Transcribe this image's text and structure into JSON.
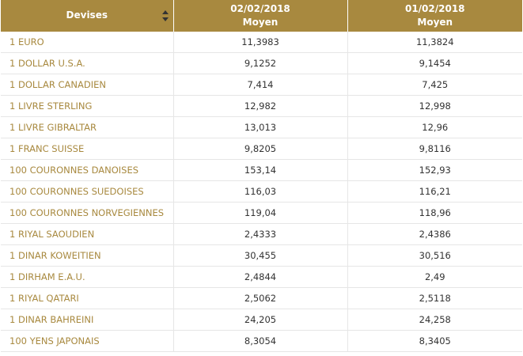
{
  "header": {
    "col_currency": "Devises",
    "col_date1": "02/02/2018",
    "col_date1_sub": "Moyen",
    "col_date2": "01/02/2018",
    "col_date2_sub": "Moyen",
    "sort_icon": "sort-updown-icon"
  },
  "rows": [
    {
      "name": "1 EURO",
      "v1": "11,3983",
      "v2": "11,3824"
    },
    {
      "name": "1 DOLLAR U.S.A.",
      "v1": "9,1252",
      "v2": "9,1454"
    },
    {
      "name": "1 DOLLAR CANADIEN",
      "v1": "7,414",
      "v2": "7,425"
    },
    {
      "name": "1 LIVRE STERLING",
      "v1": "12,982",
      "v2": "12,998"
    },
    {
      "name": "1 LIVRE GIBRALTAR",
      "v1": "13,013",
      "v2": "12,96"
    },
    {
      "name": "1 FRANC SUISSE",
      "v1": "9,8205",
      "v2": "9,8116"
    },
    {
      "name": "100 COURONNES DANOISES",
      "v1": "153,14",
      "v2": "152,93"
    },
    {
      "name": "100 COURONNES SUEDOISES",
      "v1": "116,03",
      "v2": "116,21"
    },
    {
      "name": "100 COURONNES NORVEGIENNES",
      "v1": "119,04",
      "v2": "118,96"
    },
    {
      "name": "1 RIYAL SAOUDIEN",
      "v1": "2,4333",
      "v2": "2,4386"
    },
    {
      "name": "1 DINAR KOWEITIEN",
      "v1": "30,455",
      "v2": "30,516"
    },
    {
      "name": "1 DIRHAM E.A.U.",
      "v1": "2,4844",
      "v2": "2,49"
    },
    {
      "name": "1 RIYAL QATARI",
      "v1": "2,5062",
      "v2": "2,5118"
    },
    {
      "name": "1 DINAR BAHREINI",
      "v1": "24,205",
      "v2": "24,258"
    },
    {
      "name": "100 YENS JAPONAIS",
      "v1": "8,3054",
      "v2": "8,3405"
    }
  ],
  "colors": {
    "header_bg": "#a8893f",
    "currency_text": "#a8893f",
    "value_text": "#333333",
    "grid": "#e6e6e6"
  }
}
